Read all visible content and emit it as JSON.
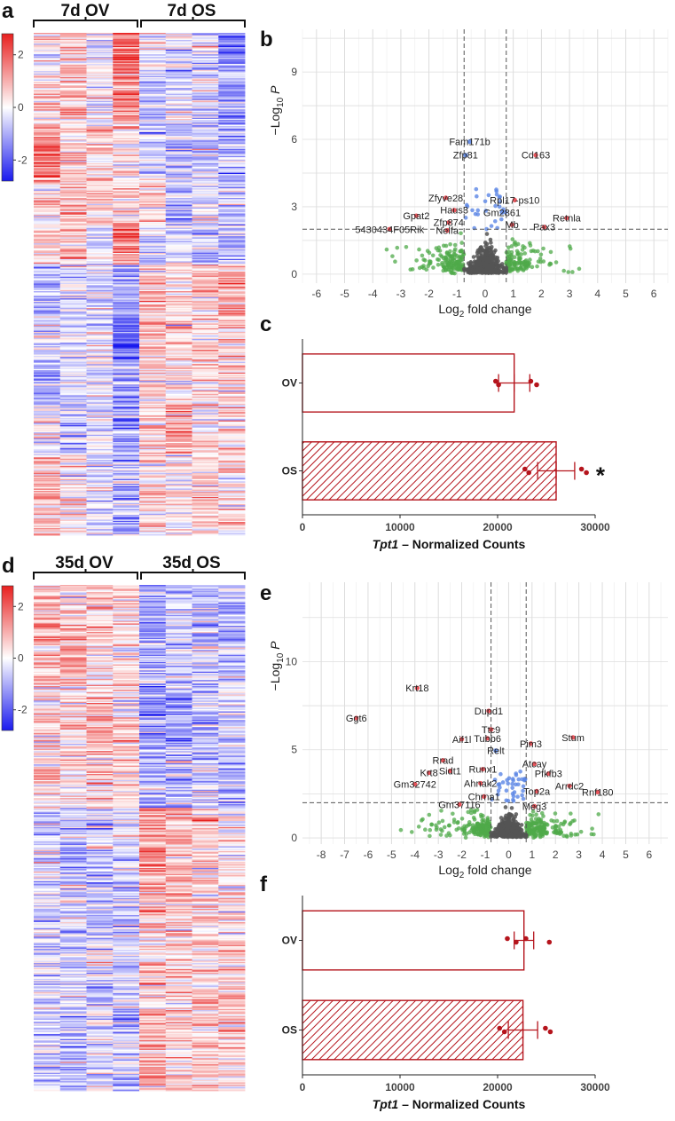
{
  "panels": {
    "a": "a",
    "b": "b",
    "c": "c",
    "d": "d",
    "e": "e",
    "f": "f"
  },
  "heatmap_7d": {
    "title_left": "7d OV",
    "title_right": "7d OS"
  },
  "heatmap_35d": {
    "title_left": "35d OV",
    "title_right": "35d OS"
  },
  "colors": {
    "heat_high": "#e8201f",
    "heat_mid": "#ffffff",
    "heat_low": "#1a1aee",
    "volcano_red": "#e8424a",
    "volcano_blue": "#5b86e5",
    "volcano_green": "#4fa94a",
    "volcano_grey": "#555555",
    "bar_red": "#b5141c"
  },
  "chart_data": [
    {
      "id": "a",
      "type": "heatmap",
      "title": "7d OV / 7d OS",
      "groups": [
        {
          "name": "7d OV",
          "columns": 4
        },
        {
          "name": "7d OS",
          "columns": 4
        }
      ],
      "color_scale": {
        "min": -2.8,
        "max": 2.8,
        "ticks": [
          2,
          0,
          -2
        ],
        "tick_labels": [
          "2",
          "0",
          "-2"
        ]
      },
      "row_count": 420,
      "seed": 7,
      "blocks": [
        {
          "to": 0.06,
          "mean": [
            0.3,
            0.6,
            -0.3,
            2.0,
            -0.2,
            -0.4,
            -0.3,
            -1.6
          ]
        },
        {
          "to": 0.18,
          "mean": [
            0.4,
            0.8,
            -0.2,
            1.5,
            -0.5,
            -0.3,
            -0.8,
            -1.3
          ]
        },
        {
          "to": 0.3,
          "mean": [
            1.8,
            0.6,
            0.7,
            0.3,
            -0.4,
            -0.7,
            -0.6,
            -0.8
          ]
        },
        {
          "to": 0.38,
          "mean": [
            0.5,
            0.9,
            0.5,
            0.4,
            0.3,
            -1.2,
            -0.4,
            -0.5
          ]
        },
        {
          "to": 0.46,
          "mean": [
            0.5,
            0.7,
            -0.1,
            1.4,
            -0.4,
            -0.3,
            -0.6,
            -0.7
          ]
        },
        {
          "to": 0.56,
          "mean": [
            -0.7,
            -0.4,
            -0.3,
            -1.3,
            0.6,
            0.3,
            0.9,
            1.2
          ]
        },
        {
          "to": 0.66,
          "mean": [
            -0.6,
            -0.3,
            -0.2,
            -1.8,
            0.7,
            0.5,
            0.6,
            0.6
          ]
        },
        {
          "to": 0.74,
          "mean": [
            -1.0,
            -0.5,
            -0.3,
            -1.2,
            0.6,
            0.4,
            0.3,
            0.5
          ]
        },
        {
          "to": 0.84,
          "mean": [
            -0.3,
            -0.6,
            -0.5,
            -1.1,
            0.5,
            1.0,
            0.4,
            0.3
          ]
        },
        {
          "to": 1.0,
          "mean": [
            0.8,
            0.3,
            -0.4,
            -0.9,
            0.4,
            0.3,
            0.5,
            0.4
          ]
        }
      ]
    },
    {
      "id": "b",
      "type": "scatter",
      "subtype": "volcano",
      "xlabel": "Log2 fold change",
      "ylabel": "-Log10 P",
      "xlim": [
        -6.5,
        6.5
      ],
      "ylim": [
        -0.4,
        10.9
      ],
      "xticks": [
        -6,
        -5,
        -4,
        -3,
        -2,
        -1,
        0,
        1,
        2,
        3,
        4,
        5,
        6
      ],
      "yticks": [
        0,
        3,
        6,
        9
      ],
      "fc_cutoff": 0.75,
      "p_cutoff": 2.0,
      "background": {
        "seed": 11,
        "grey": 380,
        "green": 280,
        "blue": 28,
        "sx": 0.28,
        "sxg": 1.3,
        "xmax": 4.1
      },
      "labeled_genes": [
        {
          "name": "Fam171b",
          "x": -0.55,
          "y": 5.9
        },
        {
          "name": "Zfp81",
          "x": -0.7,
          "y": 5.3
        },
        {
          "name": "Cd163",
          "x": 1.8,
          "y": 5.3
        },
        {
          "name": "Zfyve28",
          "x": -1.4,
          "y": 3.4
        },
        {
          "name": "Rpl17-ps10",
          "x": 1.05,
          "y": 3.3
        },
        {
          "name": "Haus3",
          "x": -1.1,
          "y": 2.85
        },
        {
          "name": "Gm2861",
          "x": 0.6,
          "y": 2.75
        },
        {
          "name": "Gpat2",
          "x": -2.45,
          "y": 2.6
        },
        {
          "name": "Retnla",
          "x": 2.9,
          "y": 2.5
        },
        {
          "name": "Zfp874",
          "x": -1.3,
          "y": 2.3
        },
        {
          "name": "Mb",
          "x": 0.95,
          "y": 2.2
        },
        {
          "name": "Pax3",
          "x": 2.1,
          "y": 2.1
        },
        {
          "name": "Nelfa",
          "x": -1.35,
          "y": 1.95
        },
        {
          "name": "5430434F05Rik",
          "x": -3.4,
          "y": 2.0
        }
      ]
    },
    {
      "id": "c",
      "type": "bar",
      "orientation": "horizontal",
      "title": "Tpt1 – Normalized Counts",
      "xlabel_italic": "Tpt1",
      "xlabel_rest": " – Normalized Counts",
      "categories": [
        "OV",
        "OS"
      ],
      "values": [
        21700,
        26000
      ],
      "errors": [
        1600,
        1900
      ],
      "points": [
        [
          19800,
          20100,
          23400,
          24000
        ],
        [
          22800,
          23200,
          28600,
          29100
        ]
      ],
      "hatched": [
        false,
        true
      ],
      "xlim": [
        0,
        30000
      ],
      "xticks": [
        0,
        10000,
        20000,
        30000
      ],
      "significance": [
        null,
        "*"
      ]
    },
    {
      "id": "d",
      "type": "heatmap",
      "title": "35d OV / 35d OS",
      "groups": [
        {
          "name": "35d OV",
          "columns": 4
        },
        {
          "name": "35d OS",
          "columns": 4
        }
      ],
      "color_scale": {
        "min": -2.8,
        "max": 2.8,
        "ticks": [
          2,
          0,
          -2
        ],
        "tick_labels": [
          "2",
          "0",
          "-2"
        ]
      },
      "row_count": 420,
      "seed": 35,
      "blocks": [
        {
          "to": 0.12,
          "mean": [
            0.9,
            0.6,
            0.7,
            0.5,
            -1.0,
            -0.7,
            -0.9,
            -0.8
          ]
        },
        {
          "to": 0.2,
          "mean": [
            0.6,
            1.2,
            0.4,
            0.2,
            -0.8,
            -0.6,
            -0.3,
            -0.7
          ]
        },
        {
          "to": 0.34,
          "mean": [
            0.5,
            0.4,
            0.9,
            0.6,
            -1.2,
            -0.9,
            -0.8,
            -0.4
          ]
        },
        {
          "to": 0.44,
          "mean": [
            0.6,
            0.3,
            0.7,
            0.5,
            -0.9,
            -0.8,
            -0.4,
            -0.9
          ]
        },
        {
          "to": 0.56,
          "mean": [
            -0.3,
            -0.8,
            -0.5,
            -0.4,
            1.3,
            0.9,
            0.6,
            0.2
          ]
        },
        {
          "to": 0.7,
          "mean": [
            -0.6,
            -0.5,
            -0.7,
            -0.6,
            0.8,
            0.9,
            0.4,
            0.3
          ]
        },
        {
          "to": 0.84,
          "mean": [
            -0.3,
            -0.4,
            -0.5,
            -0.6,
            0.5,
            0.4,
            0.6,
            0.7
          ]
        },
        {
          "to": 1.0,
          "mean": [
            -0.5,
            -0.7,
            -0.4,
            -0.6,
            0.9,
            0.6,
            0.8,
            0.5
          ]
        }
      ]
    },
    {
      "id": "e",
      "type": "scatter",
      "subtype": "volcano",
      "xlabel": "Log2 fold change",
      "ylabel": "-Log10 P",
      "xlim": [
        -8.8,
        6.8
      ],
      "ylim": [
        -0.35,
        14.5
      ],
      "xticks": [
        -8,
        -7,
        -6,
        -5,
        -4,
        -3,
        -2,
        -1,
        0,
        1,
        2,
        3,
        4,
        5,
        6
      ],
      "yticks": [
        0,
        5,
        10
      ],
      "fc_cutoff": 0.75,
      "p_cutoff": 2.0,
      "background": {
        "seed": 23,
        "grey": 420,
        "green": 340,
        "blue": 40,
        "sx": 0.3,
        "sxg": 1.5,
        "xmax": 4.6
      },
      "labeled_genes": [
        {
          "name": "Krt18",
          "x": -3.9,
          "y": 8.5
        },
        {
          "name": "Ggt6",
          "x": -6.5,
          "y": 6.8
        },
        {
          "name": "Dupd1",
          "x": -0.85,
          "y": 7.2
        },
        {
          "name": "Ttc9",
          "x": -0.75,
          "y": 6.15
        },
        {
          "name": "Tubb6",
          "x": -0.9,
          "y": 5.65
        },
        {
          "name": "Aif1l",
          "x": -2.0,
          "y": 5.6
        },
        {
          "name": "Relt",
          "x": -0.55,
          "y": 4.95
        },
        {
          "name": "Pim3",
          "x": 0.95,
          "y": 5.35
        },
        {
          "name": "Stum",
          "x": 2.75,
          "y": 5.7
        },
        {
          "name": "Rrad",
          "x": -2.8,
          "y": 4.4
        },
        {
          "name": "Atcay",
          "x": 1.1,
          "y": 4.2
        },
        {
          "name": "Runx1",
          "x": -1.1,
          "y": 3.9
        },
        {
          "name": "Sidt1",
          "x": -2.5,
          "y": 3.8
        },
        {
          "name": "Krt8",
          "x": -3.4,
          "y": 3.7
        },
        {
          "name": "Pfkfb3",
          "x": 1.7,
          "y": 3.65
        },
        {
          "name": "Ahnak2",
          "x": -1.2,
          "y": 3.1
        },
        {
          "name": "Gm32742",
          "x": -4.0,
          "y": 3.05
        },
        {
          "name": "Arrdc2",
          "x": 2.6,
          "y": 2.95
        },
        {
          "name": "Top2a",
          "x": 1.2,
          "y": 2.65
        },
        {
          "name": "Rnf180",
          "x": 3.8,
          "y": 2.6
        },
        {
          "name": "Chrna1",
          "x": -1.05,
          "y": 2.35
        },
        {
          "name": "Gm37116",
          "x": -2.1,
          "y": 1.9
        },
        {
          "name": "Meg3",
          "x": 1.1,
          "y": 1.8
        }
      ]
    },
    {
      "id": "f",
      "type": "bar",
      "orientation": "horizontal",
      "title": "Tpt1 – Normalized Counts",
      "xlabel_italic": "Tpt1",
      "xlabel_rest": " – Normalized Counts",
      "categories": [
        "OV",
        "OS"
      ],
      "values": [
        22700,
        22600
      ],
      "errors": [
        1000,
        1500
      ],
      "points": [
        [
          21000,
          21900,
          22900,
          25300
        ],
        [
          20200,
          20700,
          24900,
          25400
        ]
      ],
      "hatched": [
        false,
        true
      ],
      "xlim": [
        0,
        30000
      ],
      "xticks": [
        0,
        10000,
        20000,
        30000
      ],
      "significance": [
        null,
        null
      ]
    }
  ]
}
